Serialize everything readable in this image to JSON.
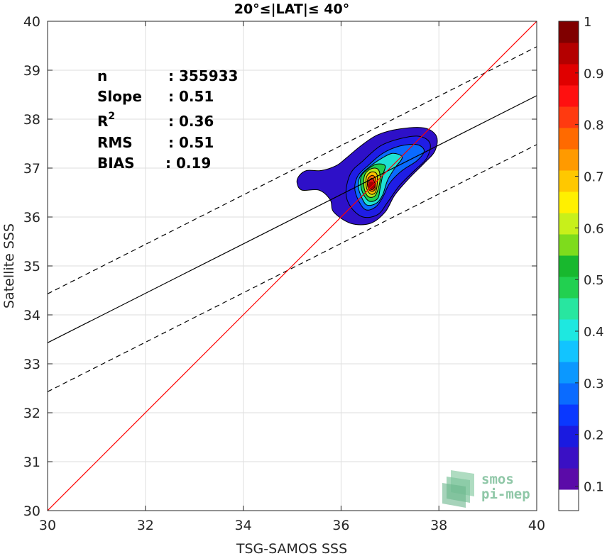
{
  "chart_data": {
    "type": "scatter",
    "title": "20°≤|LAT|≤ 40°",
    "xlabel": "TSG-SAMOS SSS",
    "ylabel": "Satellite SSS",
    "xlim": [
      30,
      40
    ],
    "ylim": [
      30,
      40
    ],
    "xticks": [
      "30",
      "32",
      "34",
      "36",
      "38",
      "40"
    ],
    "yticks": [
      "30",
      "31",
      "32",
      "33",
      "34",
      "35",
      "36",
      "37",
      "38",
      "39",
      "40"
    ],
    "grid": true,
    "stats": {
      "n_label": "n",
      "n_value": ": 355933",
      "slope_label": "Slope",
      "slope_value": ": 0.51",
      "r2_label": "R",
      "r2_sup": "2",
      "r2_value": ": 0.36",
      "rms_label": "RMS",
      "rms_value": ": 0.51",
      "bias_label": "BIAS",
      "bias_value": ": 0.19"
    },
    "lines": {
      "identity": {
        "slope": 1,
        "intercept": 0,
        "color": "#ff0000"
      },
      "regression": {
        "slope": 0.505,
        "intercept": 18.28,
        "color": "#000000"
      },
      "upper_bound": {
        "slope": 0.505,
        "intercept": 19.28,
        "color": "#000000",
        "dashed": true
      },
      "lower_bound": {
        "slope": 0.505,
        "intercept": 17.28,
        "color": "#000000",
        "dashed": true
      }
    },
    "density_peak": {
      "x": 36.62,
      "y": 36.65
    },
    "density_levels": [
      {
        "level": 0.05,
        "color": "#2e10c8",
        "points": [
          [
            35.15,
            36.85
          ],
          [
            35.3,
            36.95
          ],
          [
            35.6,
            36.95
          ],
          [
            35.9,
            37.05
          ],
          [
            36.1,
            37.2
          ],
          [
            36.4,
            37.45
          ],
          [
            36.75,
            37.68
          ],
          [
            37.2,
            37.8
          ],
          [
            37.7,
            37.82
          ],
          [
            37.95,
            37.65
          ],
          [
            37.92,
            37.35
          ],
          [
            37.7,
            37.1
          ],
          [
            37.4,
            36.8
          ],
          [
            37.1,
            36.45
          ],
          [
            36.9,
            36.1
          ],
          [
            36.6,
            35.87
          ],
          [
            36.2,
            35.87
          ],
          [
            35.85,
            36.1
          ],
          [
            35.78,
            36.35
          ],
          [
            35.55,
            36.55
          ],
          [
            35.2,
            36.55
          ],
          [
            35.1,
            36.7
          ]
        ]
      },
      {
        "level": 0.1,
        "color": "#1f1de6",
        "points": [
          [
            36.2,
            36.9
          ],
          [
            36.45,
            37.15
          ],
          [
            36.8,
            37.45
          ],
          [
            37.2,
            37.6
          ],
          [
            37.6,
            37.65
          ],
          [
            37.82,
            37.5
          ],
          [
            37.75,
            37.2
          ],
          [
            37.5,
            36.95
          ],
          [
            37.2,
            36.65
          ],
          [
            36.95,
            36.3
          ],
          [
            36.75,
            36.05
          ],
          [
            36.45,
            36.0
          ],
          [
            36.2,
            36.2
          ],
          [
            36.1,
            36.5
          ]
        ]
      },
      {
        "level": 0.25,
        "color": "#0a6bff",
        "points": [
          [
            36.35,
            36.85
          ],
          [
            36.55,
            37.05
          ],
          [
            36.85,
            37.3
          ],
          [
            37.2,
            37.45
          ],
          [
            37.55,
            37.48
          ],
          [
            37.7,
            37.35
          ],
          [
            37.55,
            37.15
          ],
          [
            37.25,
            36.95
          ],
          [
            37.0,
            36.7
          ],
          [
            36.85,
            36.4
          ],
          [
            36.7,
            36.2
          ],
          [
            36.5,
            36.15
          ],
          [
            36.35,
            36.35
          ],
          [
            36.28,
            36.6
          ]
        ]
      },
      {
        "level": 0.4,
        "color": "#1ee0d4",
        "points": [
          [
            36.4,
            36.85
          ],
          [
            36.55,
            37.0
          ],
          [
            36.8,
            37.18
          ],
          [
            37.05,
            37.3
          ],
          [
            37.25,
            37.22
          ],
          [
            37.1,
            37.0
          ],
          [
            36.95,
            36.75
          ],
          [
            36.85,
            36.45
          ],
          [
            36.72,
            36.28
          ],
          [
            36.52,
            36.25
          ],
          [
            36.4,
            36.45
          ],
          [
            36.35,
            36.65
          ]
        ]
      },
      {
        "level": 0.5,
        "color": "#20d050",
        "points": [
          [
            36.42,
            36.85
          ],
          [
            36.55,
            36.98
          ],
          [
            36.72,
            37.08
          ],
          [
            36.9,
            37.05
          ],
          [
            36.85,
            36.85
          ],
          [
            36.8,
            36.6
          ],
          [
            36.75,
            36.38
          ],
          [
            36.58,
            36.32
          ],
          [
            36.45,
            36.48
          ],
          [
            36.4,
            36.68
          ]
        ]
      },
      {
        "level": 0.6,
        "color": "#b8e61a",
        "points": [
          [
            36.48,
            36.85
          ],
          [
            36.6,
            36.98
          ],
          [
            36.75,
            36.98
          ],
          [
            36.8,
            36.8
          ],
          [
            36.75,
            36.55
          ],
          [
            36.68,
            36.42
          ],
          [
            36.55,
            36.42
          ],
          [
            36.47,
            36.6
          ]
        ]
      },
      {
        "level": 0.7,
        "color": "#ffc000",
        "points": [
          [
            36.52,
            36.82
          ],
          [
            36.62,
            36.92
          ],
          [
            36.73,
            36.88
          ],
          [
            36.74,
            36.68
          ],
          [
            36.7,
            36.5
          ],
          [
            36.6,
            36.47
          ],
          [
            36.52,
            36.6
          ]
        ]
      },
      {
        "level": 0.8,
        "color": "#ff6a00",
        "points": [
          [
            36.55,
            36.78
          ],
          [
            36.63,
            36.85
          ],
          [
            36.7,
            36.8
          ],
          [
            36.71,
            36.62
          ],
          [
            36.66,
            36.53
          ],
          [
            36.58,
            36.55
          ],
          [
            36.54,
            36.65
          ]
        ]
      },
      {
        "level": 0.9,
        "color": "#e8140c",
        "points": [
          [
            36.57,
            36.73
          ],
          [
            36.63,
            36.79
          ],
          [
            36.68,
            36.72
          ],
          [
            36.68,
            36.6
          ],
          [
            36.63,
            36.56
          ],
          [
            36.58,
            36.6
          ]
        ]
      }
    ],
    "colorbar": {
      "range": [
        0,
        1
      ],
      "ticks": [
        "0.1",
        "0.2",
        "0.3",
        "0.4",
        "0.5",
        "0.6",
        "0.7",
        "0.8",
        "0.9",
        "1"
      ],
      "bands": [
        "#ffffff",
        "#5b0ba8",
        "#3a10c4",
        "#1a1ae0",
        "#0a38ff",
        "#0a6bff",
        "#0b98ff",
        "#12c4ff",
        "#1ee8e0",
        "#28e6a0",
        "#22d050",
        "#18b82e",
        "#7edc1c",
        "#c8f01a",
        "#fff000",
        "#ffc800",
        "#ff9a00",
        "#ff6a00",
        "#ff3a10",
        "#ff1010",
        "#e00000",
        "#b40000",
        "#800000"
      ]
    }
  },
  "logo": {
    "line1": "smos",
    "line2": "pi-mep"
  }
}
